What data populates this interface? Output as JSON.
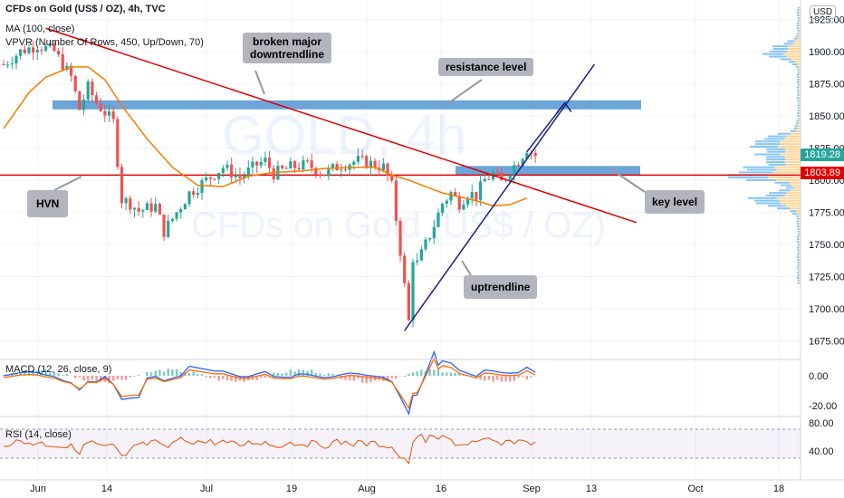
{
  "header": {
    "symbol": "CFDs on Gold (US$ / OZ), 4h, TVC",
    "ma_label": "MA (100, close)",
    "vpvr_label": "VPVR (Number Of Rows, 450, Up/Down, 70)",
    "currency": "USD"
  },
  "watermark": {
    "line1": "GOLD, 4h",
    "line2": "CFDs on Gold (US$ / OZ)"
  },
  "price_tags": {
    "last": "1819.28",
    "key": "1803.89"
  },
  "annotations": {
    "downtrend": "broken major\ndowntrendline",
    "resistance": "resistance level",
    "hvn": "HVN",
    "key_level": "key level",
    "uptrend": "uptrendline"
  },
  "macd": {
    "label": "MACD (12, 26, close, 9)",
    "ticks": [
      "0.00",
      "-20.00"
    ]
  },
  "rsi": {
    "label": "RSI (14, close)",
    "ticks": [
      "80.00",
      "40.00"
    ]
  },
  "colors": {
    "candle_up": "#26a69a",
    "candle_down": "#ef5350",
    "ma": "#f57c00",
    "resistance": "#5b9bd5",
    "trend_red": "#e00000",
    "trend_blue": "#1a237e",
    "price_tag_last": "#26a69a",
    "price_tag_key": "#e00000"
  },
  "chart_data": {
    "type": "candlestick",
    "title": "CFDs on Gold (US$ / OZ), 4h, TVC",
    "x_tick_labels": [
      "Jun",
      "14",
      "Jul",
      "19",
      "Aug",
      "16",
      "Sep",
      "13",
      "Oct",
      "18"
    ],
    "y_ticks": [
      1675,
      1700,
      1725,
      1750,
      1775,
      1800,
      1825,
      1850,
      1875,
      1900,
      1925
    ],
    "ylim": [
      1662,
      1940
    ],
    "price_path": [
      [
        0,
        1890
      ],
      [
        4,
        1900
      ],
      [
        8,
        1905
      ],
      [
        12,
        1900
      ],
      [
        16,
        1880
      ],
      [
        18,
        1855
      ],
      [
        20,
        1872
      ],
      [
        22,
        1860
      ],
      [
        26,
        1845
      ],
      [
        28,
        1785
      ],
      [
        30,
        1782
      ],
      [
        32,
        1776
      ],
      [
        36,
        1780
      ],
      [
        38,
        1760
      ],
      [
        40,
        1770
      ],
      [
        44,
        1790
      ],
      [
        48,
        1800
      ],
      [
        52,
        1810
      ],
      [
        56,
        1802
      ],
      [
        60,
        1812
      ],
      [
        62,
        1815
      ],
      [
        64,
        1805
      ],
      [
        68,
        1810
      ],
      [
        72,
        1812
      ],
      [
        76,
        1805
      ],
      [
        80,
        1812
      ],
      [
        84,
        1815
      ],
      [
        88,
        1812
      ],
      [
        90,
        1810
      ],
      [
        92,
        1795
      ],
      [
        94,
        1745
      ],
      [
        96,
        1690
      ],
      [
        97,
        1740
      ],
      [
        98,
        1735
      ],
      [
        100,
        1750
      ],
      [
        102,
        1765
      ],
      [
        104,
        1782
      ],
      [
        106,
        1790
      ],
      [
        108,
        1782
      ],
      [
        110,
        1790
      ],
      [
        112,
        1788
      ],
      [
        114,
        1800
      ],
      [
        116,
        1805
      ],
      [
        118,
        1798
      ],
      [
        120,
        1808
      ],
      [
        122,
        1815
      ],
      [
        124,
        1825
      ],
      [
        126,
        1819
      ]
    ],
    "ma_path": [
      [
        0,
        1840
      ],
      [
        6,
        1868
      ],
      [
        10,
        1880
      ],
      [
        16,
        1888
      ],
      [
        20,
        1888
      ],
      [
        24,
        1878
      ],
      [
        28,
        1858
      ],
      [
        34,
        1832
      ],
      [
        40,
        1810
      ],
      [
        46,
        1796
      ],
      [
        52,
        1795
      ],
      [
        58,
        1803
      ],
      [
        64,
        1806
      ],
      [
        70,
        1807
      ],
      [
        76,
        1809
      ],
      [
        84,
        1810
      ],
      [
        88,
        1810
      ],
      [
        92,
        1804
      ],
      [
        96,
        1800
      ],
      [
        100,
        1795
      ],
      [
        104,
        1790
      ],
      [
        108,
        1787
      ],
      [
        112,
        1784
      ],
      [
        116,
        1780
      ],
      [
        120,
        1781
      ],
      [
        124,
        1786
      ]
    ],
    "levels": {
      "resistance": [
        1855,
        1862
      ],
      "key_level_zone": [
        1804,
        1811
      ],
      "key_level_line": 1803.89
    },
    "trendlines": [
      {
        "name": "downtrend",
        "from": [
          10,
          1918
        ],
        "to": [
          150,
          1767
        ]
      },
      {
        "name": "uptrend",
        "from": [
          95,
          1683
        ],
        "to": [
          140,
          1890
        ]
      }
    ],
    "volume_profile_peaks": [
      1805,
      1785,
      1820,
      1900,
      1830
    ]
  }
}
